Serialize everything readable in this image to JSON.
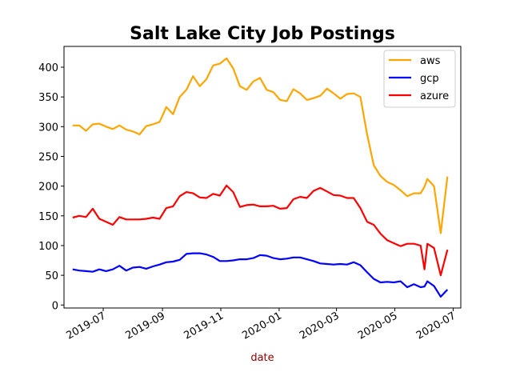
{
  "chart_data": {
    "type": "line",
    "title": "Salt Lake City Job Postings",
    "xlabel": "date",
    "xlabel_color": "#8b0000",
    "ylabel": "",
    "ylim": [
      -5,
      435
    ],
    "xlim": [
      "2019-05-21",
      "2020-07-09"
    ],
    "y_ticks": [
      0,
      50,
      100,
      150,
      200,
      250,
      300,
      350,
      400
    ],
    "x_ticks": [
      {
        "date": "2019-07-01",
        "label": "2019-07"
      },
      {
        "date": "2019-09-01",
        "label": "2019-09"
      },
      {
        "date": "2019-11-01",
        "label": "2019-11"
      },
      {
        "date": "2020-01-01",
        "label": "2020-01"
      },
      {
        "date": "2020-03-01",
        "label": "2020-03"
      },
      {
        "date": "2020-05-01",
        "label": "2020-05"
      },
      {
        "date": "2020-07-01",
        "label": "2020-07"
      }
    ],
    "legend_position": "top-right",
    "grid": false,
    "x": [
      "2019-05-30",
      "2019-06-06",
      "2019-06-13",
      "2019-06-20",
      "2019-06-27",
      "2019-07-04",
      "2019-07-11",
      "2019-07-18",
      "2019-07-25",
      "2019-08-01",
      "2019-08-08",
      "2019-08-15",
      "2019-08-22",
      "2019-08-29",
      "2019-09-05",
      "2019-09-12",
      "2019-09-19",
      "2019-09-26",
      "2019-10-03",
      "2019-10-10",
      "2019-10-17",
      "2019-10-24",
      "2019-10-31",
      "2019-11-07",
      "2019-11-14",
      "2019-11-21",
      "2019-11-28",
      "2019-12-05",
      "2019-12-12",
      "2019-12-19",
      "2019-12-26",
      "2020-01-02",
      "2020-01-09",
      "2020-01-16",
      "2020-01-23",
      "2020-01-30",
      "2020-02-06",
      "2020-02-13",
      "2020-02-20",
      "2020-02-27",
      "2020-03-05",
      "2020-03-12",
      "2020-03-19",
      "2020-03-26",
      "2020-04-02",
      "2020-04-09",
      "2020-04-16",
      "2020-04-23",
      "2020-04-30",
      "2020-05-07",
      "2020-05-14",
      "2020-05-21",
      "2020-05-28",
      "2020-06-01",
      "2020-06-04",
      "2020-06-11",
      "2020-06-18",
      "2020-06-25"
    ],
    "series": [
      {
        "name": "aws",
        "color": "#ffa500",
        "values": [
          302,
          302,
          293,
          304,
          305,
          300,
          296,
          302,
          295,
          292,
          287,
          301,
          304,
          308,
          333,
          321,
          350,
          362,
          385,
          368,
          380,
          403,
          406,
          415,
          398,
          368,
          362,
          376,
          382,
          362,
          358,
          345,
          343,
          363,
          356,
          345,
          348,
          352,
          364,
          356,
          347,
          355,
          356,
          350,
          287,
          235,
          217,
          207,
          202,
          193,
          183,
          188,
          188,
          199,
          212,
          200,
          121,
          216
        ]
      },
      {
        "name": "gcp",
        "color": "#0000ff",
        "values": [
          60,
          58,
          57,
          56,
          60,
          57,
          60,
          66,
          58,
          63,
          64,
          61,
          65,
          68,
          72,
          73,
          76,
          86,
          87,
          87,
          85,
          81,
          74,
          74,
          75,
          77,
          77,
          79,
          84,
          83,
          79,
          77,
          78,
          80,
          80,
          77,
          74,
          70,
          69,
          68,
          69,
          68,
          72,
          67,
          55,
          44,
          38,
          39,
          38,
          40,
          30,
          35,
          30,
          31,
          40,
          32,
          14,
          26
        ]
      },
      {
        "name": "azure",
        "color": "#ff0000",
        "values": [
          147,
          150,
          148,
          162,
          145,
          140,
          135,
          148,
          144,
          144,
          144,
          145,
          147,
          145,
          163,
          166,
          183,
          190,
          188,
          181,
          180,
          187,
          184,
          201,
          190,
          165,
          168,
          169,
          166,
          166,
          167,
          162,
          163,
          178,
          182,
          180,
          192,
          197,
          191,
          185,
          184,
          180,
          180,
          163,
          140,
          135,
          120,
          109,
          104,
          99,
          103,
          103,
          100,
          60,
          103,
          96,
          50,
          93
        ]
      }
    ]
  }
}
